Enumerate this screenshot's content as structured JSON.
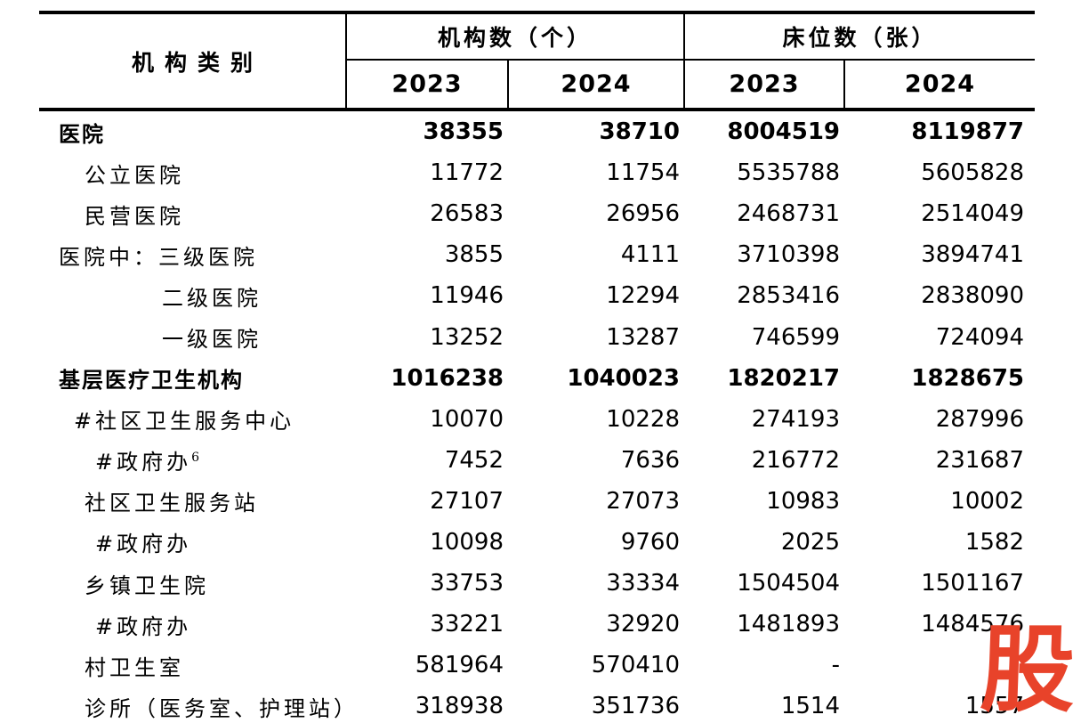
{
  "table": {
    "header": {
      "category": "机构类别",
      "groups": [
        {
          "label": "机构数（个）"
        },
        {
          "label": "床位数（张）"
        }
      ],
      "years": [
        "2023",
        "2024",
        "2023",
        "2024"
      ]
    },
    "rows": [
      {
        "label": "医院",
        "bold": true,
        "indent": 0,
        "values": [
          "38355",
          "38710",
          "8004519",
          "8119877"
        ]
      },
      {
        "label": "公立医院",
        "bold": false,
        "indent": 2,
        "values": [
          "11772",
          "11754",
          "5535788",
          "5605828"
        ]
      },
      {
        "label": "民营医院",
        "bold": false,
        "indent": 2,
        "values": [
          "26583",
          "26956",
          "2468731",
          "2514049"
        ]
      },
      {
        "label": "医院中：三级医院",
        "bold": false,
        "indent": 0,
        "values": [
          "3855",
          "4111",
          "3710398",
          "3894741"
        ]
      },
      {
        "label": "二级医院",
        "bold": false,
        "indent": 4,
        "values": [
          "11946",
          "12294",
          "2853416",
          "2838090"
        ]
      },
      {
        "label": "一级医院",
        "bold": false,
        "indent": 4,
        "values": [
          "13252",
          "13287",
          "746599",
          "724094"
        ]
      },
      {
        "label": "基层医疗卫生机构",
        "bold": true,
        "indent": 0,
        "values": [
          "1016238",
          "1040023",
          "1820217",
          "1828675"
        ]
      },
      {
        "label": "#社区卫生服务中心",
        "bold": false,
        "indent": 1,
        "values": [
          "10070",
          "10228",
          "274193",
          "287996"
        ]
      },
      {
        "label": "#政府办",
        "sup": "6",
        "bold": false,
        "indent": 3,
        "values": [
          "7452",
          "7636",
          "216772",
          "231687"
        ]
      },
      {
        "label": "社区卫生服务站",
        "bold": false,
        "indent": 2,
        "values": [
          "27107",
          "27073",
          "10983",
          "10002"
        ]
      },
      {
        "label": "#政府办",
        "bold": false,
        "indent": 3,
        "values": [
          "10098",
          "9760",
          "2025",
          "1582"
        ]
      },
      {
        "label": "乡镇卫生院",
        "bold": false,
        "indent": 2,
        "values": [
          "33753",
          "33334",
          "1504504",
          "1501167"
        ]
      },
      {
        "label": "#政府办",
        "bold": false,
        "indent": 3,
        "values": [
          "33221",
          "32920",
          "1481893",
          "1484576"
        ]
      },
      {
        "label": "村卫生室",
        "bold": false,
        "indent": 2,
        "values": [
          "581964",
          "570410",
          "-",
          ""
        ]
      },
      {
        "label": "诊所（医务室、护理站）",
        "bold": false,
        "indent": 2,
        "values": [
          "318938",
          "351736",
          "1514",
          "1557"
        ]
      }
    ]
  },
  "watermark": {
    "text": "股",
    "color": "#e8432a"
  }
}
